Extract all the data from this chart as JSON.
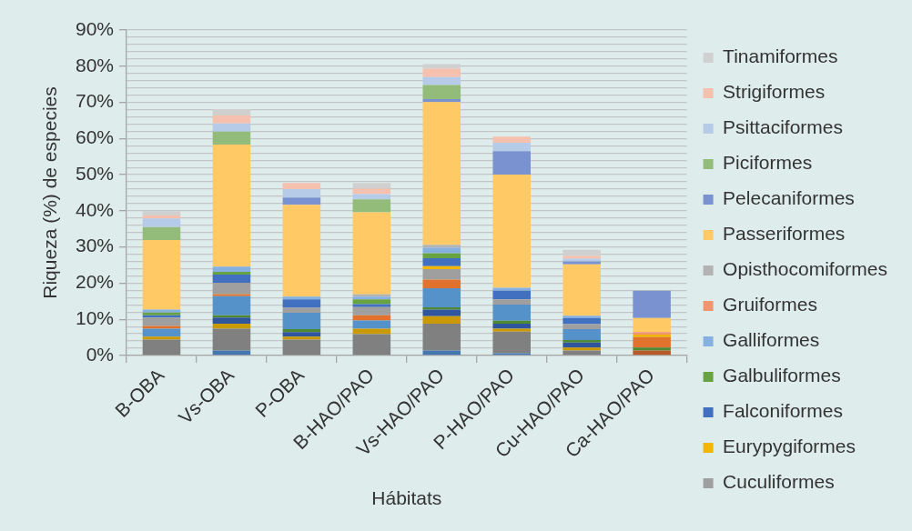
{
  "chart_data": {
    "type": "bar",
    "stacked": true,
    "categories": [
      "B-OBA",
      "Vs-OBA",
      "P-OBA",
      "B-HAO/PAO",
      "Vs-HAO/PAO",
      "P-HAO/PAO",
      "Cu-HAO/PAO",
      "Ca-HAO/PAO"
    ],
    "xlabel": "Hábitats",
    "ylabel": "Riqueza (%) de especies",
    "ylim": [
      0,
      90
    ],
    "yticks": [
      {
        "value": 0,
        "label": "0%"
      },
      {
        "value": 2,
        "label": null
      },
      {
        "value": 4,
        "label": null
      },
      {
        "value": 6,
        "label": null
      },
      {
        "value": 8,
        "label": null
      },
      {
        "value": 10,
        "label": "10%"
      },
      {
        "value": 12,
        "label": null
      },
      {
        "value": 14,
        "label": null
      },
      {
        "value": 16,
        "label": null
      },
      {
        "value": 18,
        "label": null
      },
      {
        "value": 20,
        "label": "20%"
      },
      {
        "value": 22,
        "label": null
      },
      {
        "value": 24,
        "label": null
      },
      {
        "value": 26,
        "label": null
      },
      {
        "value": 28,
        "label": null
      },
      {
        "value": 30,
        "label": "30%"
      },
      {
        "value": 32,
        "label": null
      },
      {
        "value": 34,
        "label": null
      },
      {
        "value": 36,
        "label": null
      },
      {
        "value": 38,
        "label": null
      },
      {
        "value": 40,
        "label": "40%"
      },
      {
        "value": 42,
        "label": null
      },
      {
        "value": 44,
        "label": null
      },
      {
        "value": 46,
        "label": null
      },
      {
        "value": 48,
        "label": null
      },
      {
        "value": 50,
        "label": "50%"
      },
      {
        "value": 52,
        "label": null
      },
      {
        "value": 54,
        "label": null
      },
      {
        "value": 56,
        "label": null
      },
      {
        "value": 58,
        "label": null
      },
      {
        "value": 60,
        "label": "60%"
      },
      {
        "value": 62,
        "label": null
      },
      {
        "value": 64,
        "label": null
      },
      {
        "value": 66,
        "label": null
      },
      {
        "value": 68,
        "label": null
      },
      {
        "value": 70,
        "label": "70%"
      },
      {
        "value": 72,
        "label": null
      },
      {
        "value": 74,
        "label": null
      },
      {
        "value": 76,
        "label": null
      },
      {
        "value": 78,
        "label": null
      },
      {
        "value": 80,
        "label": "80%"
      },
      {
        "value": 82,
        "label": null
      },
      {
        "value": 84,
        "label": null
      },
      {
        "value": 86,
        "label": null
      },
      {
        "value": 88,
        "label": null
      },
      {
        "value": 90,
        "label": "90%"
      }
    ],
    "grid": "y",
    "legend": "right",
    "series": [
      {
        "color": "#4677b0",
        "values": [
          null,
          1.4,
          null,
          null,
          1.4,
          0.6,
          null,
          null
        ]
      },
      {
        "color": "#b55a28",
        "values": [
          null,
          null,
          null,
          null,
          null,
          null,
          null,
          1.4
        ]
      },
      {
        "color": "#808080",
        "values": [
          4.4,
          6.0,
          4.4,
          5.9,
          7.4,
          6.0,
          1.4,
          null
        ]
      },
      {
        "color": "#c99a06",
        "values": [
          0.8,
          1.4,
          0.8,
          1.5,
          2.1,
          0.8,
          0.8,
          null
        ]
      },
      {
        "color": "#2f569c",
        "values": [
          null,
          1.7,
          1.3,
          null,
          1.8,
          1.4,
          1.4,
          null
        ]
      },
      {
        "color": "#4f8a33",
        "values": [
          null,
          0.6,
          0.8,
          null,
          0.6,
          0.8,
          0.7,
          0.8
        ]
      },
      {
        "color": "#5592ca",
        "values": [
          2.2,
          5.3,
          4.5,
          2.3,
          5.3,
          4.5,
          3.0,
          null
        ]
      },
      {
        "color": "#e0722d",
        "values": [
          0.8,
          0.6,
          null,
          1.4,
          2.4,
          null,
          null,
          2.9
        ]
      },
      {
        "name": "Cuculiformes",
        "color": "#9f9f9f",
        "values": [
          2.3,
          3.1,
          1.4,
          2.3,
          2.9,
          1.4,
          1.4,
          null
        ]
      },
      {
        "name": "Eurypygiformes",
        "color": "#f2b500",
        "values": [
          null,
          null,
          null,
          null,
          0.8,
          null,
          null,
          0.7
        ]
      },
      {
        "name": "Falconiformes",
        "color": "#4170c0",
        "values": [
          0.6,
          2.3,
          2.3,
          0.8,
          2.2,
          2.4,
          1.7,
          null
        ]
      },
      {
        "name": "Galbuliformes",
        "color": "#68a343",
        "values": [
          0.8,
          0.7,
          null,
          1.3,
          1.4,
          null,
          null,
          null
        ]
      },
      {
        "name": "Galliformes",
        "color": "#86b0e0",
        "values": [
          0.8,
          1.5,
          0.8,
          0.8,
          1.5,
          0.8,
          0.6,
          null
        ]
      },
      {
        "name": "Gruiformes",
        "color": "#f19570",
        "values": [
          null,
          null,
          null,
          null,
          null,
          null,
          null,
          0.7
        ]
      },
      {
        "name": "Opisthocomiformes",
        "color": "#b3b3b3",
        "values": [
          null,
          null,
          null,
          0.6,
          0.8,
          null,
          null,
          null
        ]
      },
      {
        "name": "Passeriformes",
        "color": "#ffc966",
        "values": [
          19.2,
          33.7,
          25.4,
          22.7,
          39.5,
          31.3,
          14.2,
          3.9
        ]
      },
      {
        "name": "Pelecaniformes",
        "color": "#7a93d0",
        "values": [
          null,
          null,
          2.0,
          null,
          0.8,
          6.5,
          0.8,
          7.5
        ]
      },
      {
        "name": "Piciformes",
        "color": "#93bc7b",
        "values": [
          3.6,
          3.6,
          null,
          3.6,
          3.9,
          null,
          null,
          null
        ]
      },
      {
        "name": "Psittaciformes",
        "color": "#b6cbe8",
        "values": [
          2.4,
          2.3,
          2.3,
          1.4,
          2.2,
          2.3,
          0.8,
          null
        ]
      },
      {
        "name": "Strigiformes",
        "color": "#f5c0ae",
        "values": [
          0.8,
          2.2,
          1.7,
          1.5,
          2.3,
          1.7,
          0.7,
          null
        ]
      },
      {
        "name": "Tinamiformes",
        "color": "#d0d0d0",
        "values": [
          1.2,
          1.7,
          null,
          1.6,
          1.3,
          null,
          1.7,
          null
        ]
      }
    ]
  }
}
